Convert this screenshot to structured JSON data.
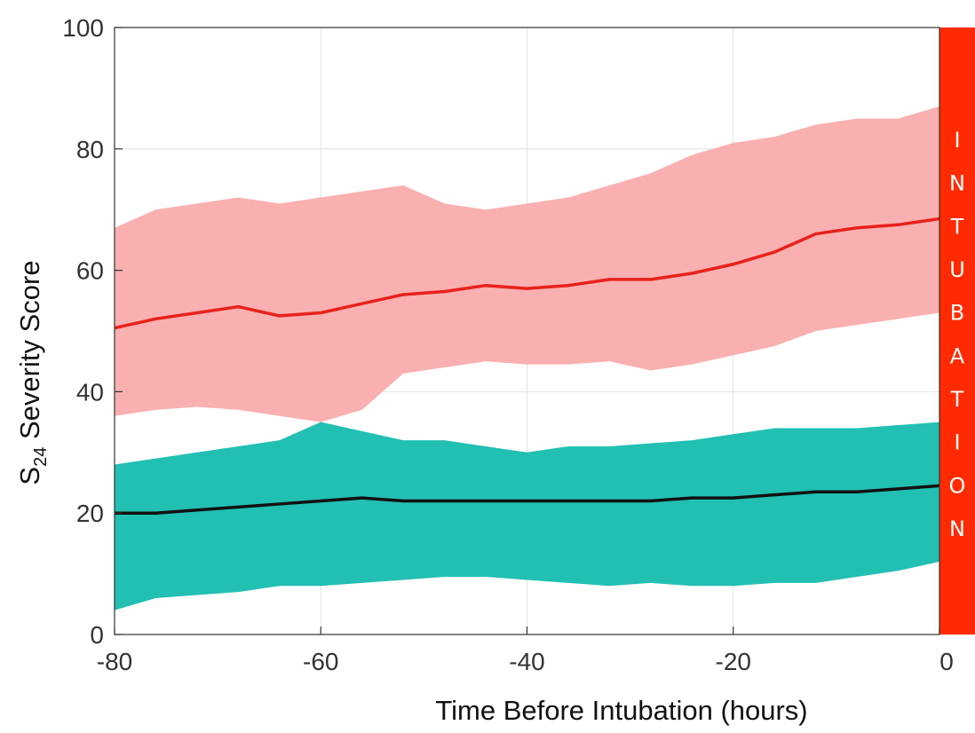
{
  "chart_data": {
    "type": "area",
    "title": "",
    "xlabel": "Time Before Intubation (hours)",
    "ylabel": {
      "main": "S",
      "subscript": "24",
      "rest": " Severity Score"
    },
    "xlim": [
      -80,
      0
    ],
    "ylim": [
      0,
      100
    ],
    "x_ticks": [
      -80,
      -60,
      -40,
      -20,
      0
    ],
    "y_ticks": [
      0,
      20,
      40,
      60,
      80,
      100
    ],
    "grid": true,
    "x": [
      -80,
      -76,
      -72,
      -68,
      -64,
      -60,
      -56,
      -52,
      -48,
      -44,
      -40,
      -36,
      -32,
      -28,
      -24,
      -20,
      -16,
      -12,
      -8,
      -4,
      0
    ],
    "series": [
      {
        "mean": [
          50.5,
          52,
          53,
          54,
          52.5,
          53,
          54.5,
          56,
          56.5,
          57.5,
          57,
          57.5,
          58.5,
          58.5,
          59.5,
          61,
          63,
          66,
          67,
          67.5,
          68.5
        ],
        "upper": [
          67,
          70,
          71,
          72,
          71,
          72,
          73,
          74,
          71,
          70,
          71,
          72,
          74,
          76,
          79,
          81,
          82,
          84,
          85,
          85,
          87
        ],
        "lower": [
          36,
          37,
          37.5,
          37,
          36,
          35,
          37,
          43,
          44,
          45,
          44.5,
          44.5,
          45,
          43.5,
          44.5,
          46,
          47.5,
          50,
          51,
          52,
          53
        ],
        "line_color": "#e8211b",
        "band_color": "#fab0b0"
      },
      {
        "mean": [
          20,
          20,
          20.5,
          21,
          21.5,
          22,
          22.5,
          22,
          22,
          22,
          22,
          22,
          22,
          22,
          22.5,
          22.5,
          23,
          23.5,
          23.5,
          24,
          24.5
        ],
        "upper": [
          28,
          29,
          30,
          31,
          32,
          35,
          33.5,
          32,
          32,
          31,
          30,
          31,
          31,
          31.5,
          32,
          33,
          34,
          34,
          34,
          34.5,
          35
        ],
        "lower": [
          4,
          6,
          6.5,
          7,
          8,
          8,
          8.5,
          9,
          9.5,
          9.5,
          9,
          8.5,
          8,
          8.5,
          8,
          8,
          8.5,
          8.5,
          9.5,
          10.5,
          12
        ],
        "line_color": "#111111",
        "band_color": "#22bfb3"
      }
    ],
    "annotation": {
      "letters": [
        "I",
        "N",
        "T",
        "U",
        "B",
        "A",
        "T",
        "I",
        "O",
        "N"
      ],
      "band_color": "#ff2a00"
    }
  }
}
